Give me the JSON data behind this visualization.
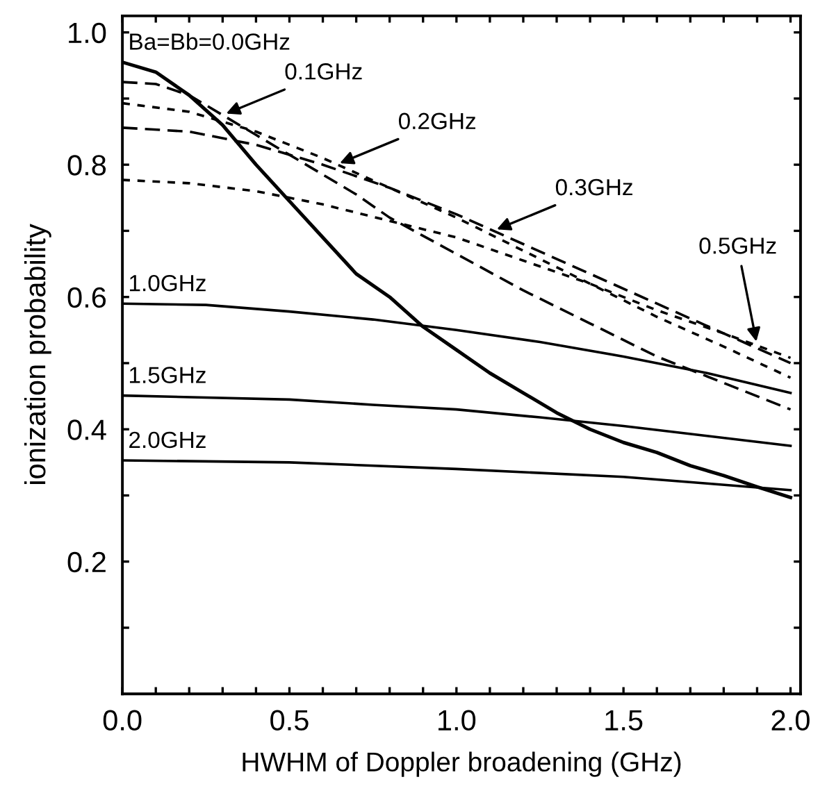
{
  "chart_data": {
    "type": "line",
    "xlabel": "HWHM of Doppler broadening (GHz)",
    "ylabel": "ionization probability",
    "xlim": [
      0,
      2.03
    ],
    "ylim": [
      0,
      1.025
    ],
    "xticks": [
      {
        "value": 0,
        "label": "0.0"
      },
      {
        "value": 0.1,
        "label": null
      },
      {
        "value": 0.2,
        "label": null
      },
      {
        "value": 0.3,
        "label": null
      },
      {
        "value": 0.4,
        "label": null
      },
      0.5,
      {
        "value": 0.6,
        "label": null
      },
      {
        "value": 0.7,
        "label": null
      },
      {
        "value": 0.8,
        "label": null
      },
      {
        "value": 0.9,
        "label": null
      },
      {
        "value": 1,
        "label": "1.0"
      },
      {
        "value": 1.1,
        "label": null
      },
      {
        "value": 1.2,
        "label": null
      },
      {
        "value": 1.3,
        "label": null
      },
      {
        "value": 1.4,
        "label": null
      },
      1.5,
      {
        "value": 1.6,
        "label": null
      },
      {
        "value": 1.7,
        "label": null
      },
      {
        "value": 1.8,
        "label": null
      },
      {
        "value": 1.9,
        "label": null
      },
      {
        "value": 2,
        "label": "2.0"
      }
    ],
    "yticks": [
      {
        "value": 0.1,
        "label": null
      },
      0.2,
      {
        "value": 0.3,
        "label": null
      },
      0.4,
      {
        "value": 0.5,
        "label": null
      },
      0.6,
      {
        "value": 0.7,
        "label": null
      },
      0.8,
      {
        "value": 0.9,
        "label": null
      },
      {
        "value": 1,
        "label": "1.0"
      }
    ],
    "grid": false,
    "legend": false,
    "marker": "none",
    "series": [
      {
        "color": "#000000",
        "line_style": "solid",
        "x": [
          0,
          0.1,
          0.2,
          0.3,
          0.4,
          0.5,
          0.6,
          0.7,
          0.8,
          0.9,
          1.0,
          1.1,
          1.2,
          1.3,
          1.4,
          1.5,
          1.6,
          1.7,
          1.8,
          1.9,
          2.0
        ],
        "values": [
          0.955,
          0.94,
          0.905,
          0.86,
          0.8,
          0.745,
          0.69,
          0.635,
          0.6,
          0.555,
          0.52,
          0.485,
          0.455,
          0.425,
          0.4,
          0.38,
          0.365,
          0.345,
          0.33,
          0.313,
          0.297
        ]
      },
      {
        "color": "#000000",
        "line_style": "dashed",
        "x": [
          0,
          0.1,
          0.2,
          0.3,
          0.4,
          0.5,
          0.6,
          0.7,
          0.8,
          1.0,
          1.2,
          1.4,
          1.6,
          1.8,
          2.0
        ],
        "values": [
          0.925,
          0.922,
          0.905,
          0.875,
          0.845,
          0.815,
          0.785,
          0.755,
          0.72,
          0.665,
          0.61,
          0.56,
          0.51,
          0.47,
          0.43
        ]
      },
      {
        "color": "#000000",
        "line_style": "dotted",
        "x": [
          0,
          0.2,
          0.4,
          0.6,
          0.8,
          1.0,
          1.2,
          1.4,
          1.6,
          1.8,
          2.0
        ],
        "values": [
          0.893,
          0.88,
          0.85,
          0.81,
          0.765,
          0.72,
          0.67,
          0.62,
          0.57,
          0.525,
          0.478
        ]
      },
      {
        "color": "#000000",
        "line_style": "dashed",
        "x": [
          0,
          0.2,
          0.4,
          0.6,
          0.8,
          1.0,
          1.2,
          1.4,
          1.6,
          1.8,
          2.0
        ],
        "values": [
          0.856,
          0.85,
          0.83,
          0.8,
          0.765,
          0.725,
          0.68,
          0.635,
          0.59,
          0.545,
          0.5
        ]
      },
      {
        "color": "#000000",
        "line_style": "dotted",
        "x": [
          0,
          0.2,
          0.4,
          0.6,
          0.8,
          1.0,
          1.2,
          1.4,
          1.6,
          1.8,
          2.0
        ],
        "values": [
          0.777,
          0.772,
          0.76,
          0.74,
          0.715,
          0.69,
          0.655,
          0.62,
          0.58,
          0.545,
          0.508
        ]
      },
      {
        "color": "#000000",
        "line_style": "solid",
        "x": [
          0,
          0.25,
          0.5,
          0.75,
          1.0,
          1.25,
          1.5,
          1.75,
          2.0
        ],
        "values": [
          0.59,
          0.588,
          0.578,
          0.566,
          0.55,
          0.532,
          0.51,
          0.485,
          0.455
        ]
      },
      {
        "color": "#000000",
        "line_style": "solid",
        "x": [
          0,
          0.5,
          0.75,
          1.0,
          1.25,
          1.5,
          1.75,
          2.0
        ],
        "values": [
          0.451,
          0.445,
          0.437,
          0.43,
          0.418,
          0.405,
          0.39,
          0.375
        ]
      },
      {
        "color": "#000000",
        "line_style": "solid",
        "x": [
          0,
          0.5,
          1.0,
          1.5,
          1.75,
          2.0
        ],
        "values": [
          0.353,
          0.35,
          0.34,
          0.328,
          0.318,
          0.308
        ]
      }
    ],
    "annotations": [
      {
        "text": "Ba=Bb=0.0GHz",
        "x": 0,
        "y": 0.955
      },
      {
        "text": "0.1GHz",
        "x": 0.3,
        "y": 0.875
      },
      {
        "text": "0.2GHz",
        "x": 0.64,
        "y": 0.8
      },
      {
        "text": "0.3GHz",
        "x": 1.11,
        "y": 0.7
      },
      {
        "text": "0.5GHz",
        "x": 1.9,
        "y": 0.527
      },
      {
        "text": "1.0GHz",
        "x": 0,
        "y": 0.59
      },
      {
        "text": "1.5GHz",
        "x": 0,
        "y": 0.451
      },
      {
        "text": "2.0GHz",
        "x": 0,
        "y": 0.353
      }
    ]
  }
}
